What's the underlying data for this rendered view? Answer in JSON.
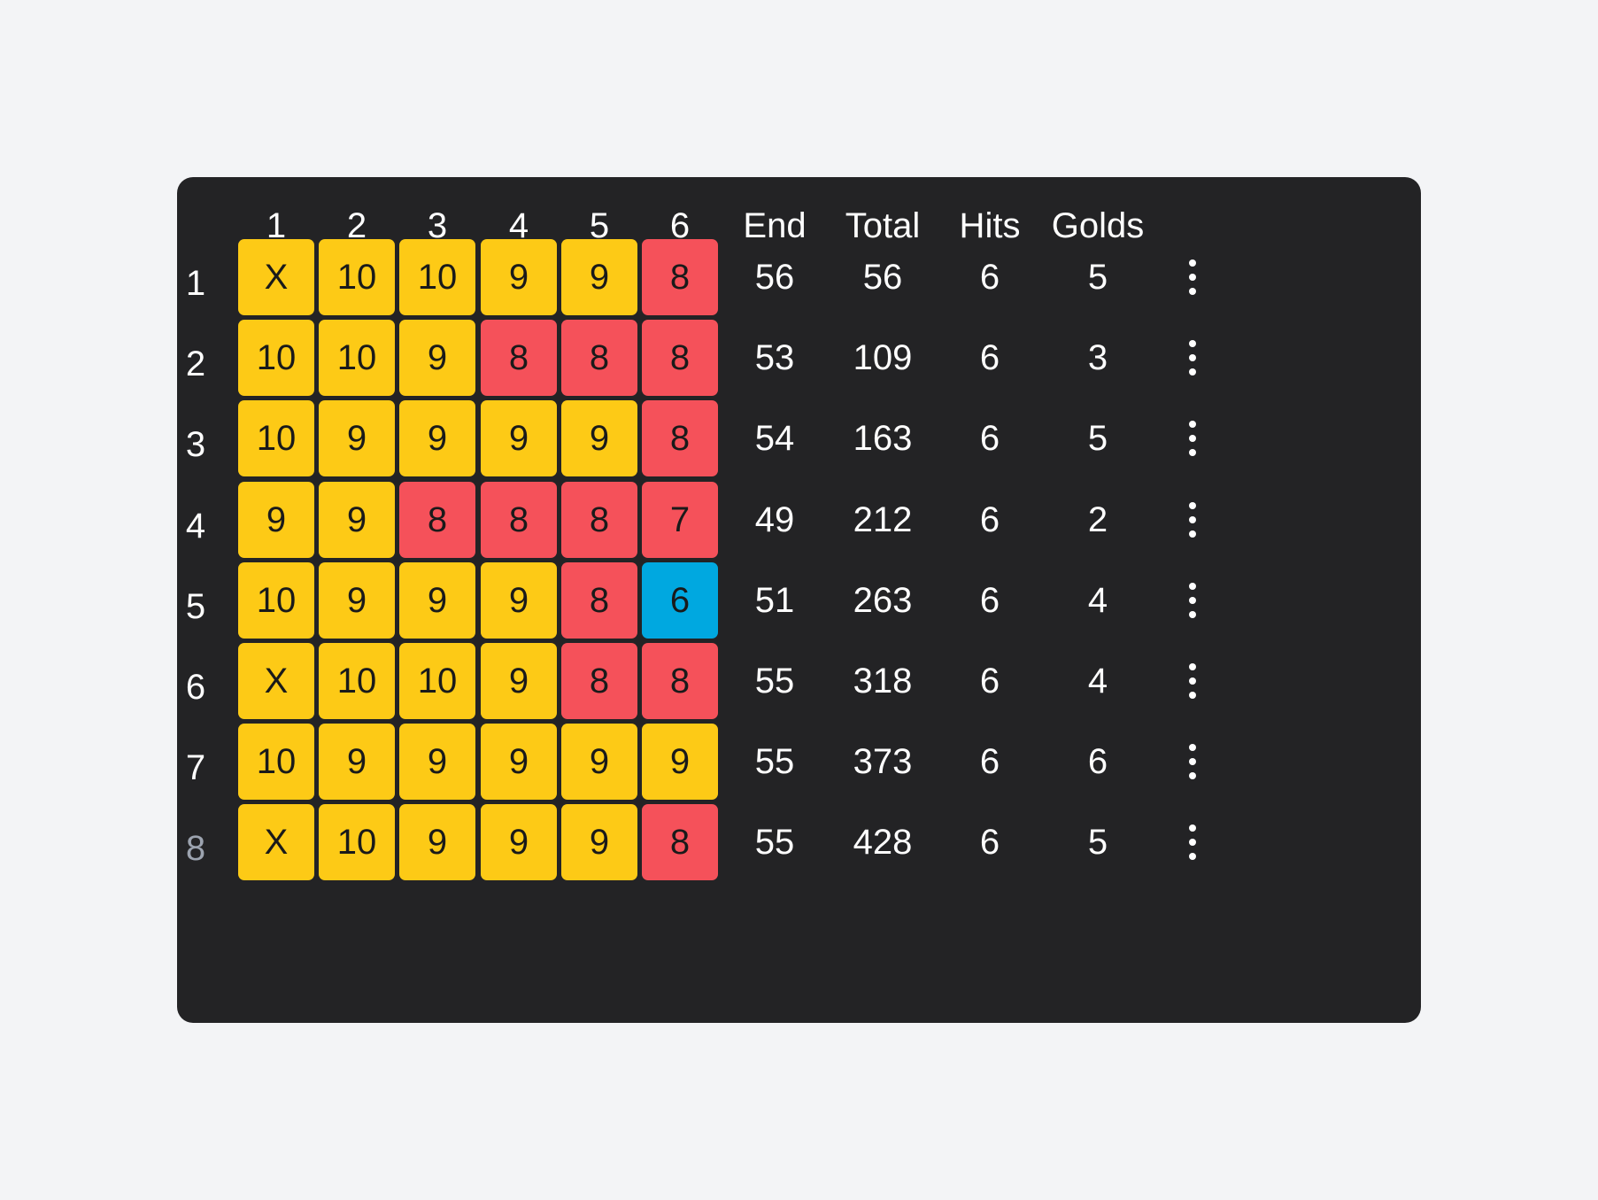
{
  "columns": [
    "1",
    "2",
    "3",
    "4",
    "5",
    "6"
  ],
  "stat_headers": [
    "End",
    "Total",
    "Hits",
    "Golds"
  ],
  "score_colors": {
    "gold": "#fdca16",
    "red": "#f5515a",
    "blue": "#00a8e0"
  },
  "row_action_icon": "more-vertical-icon",
  "rows": [
    {
      "num": "1",
      "arrows": [
        "X",
        "10",
        "10",
        "9",
        "9",
        "8"
      ],
      "end": "56",
      "total": "56",
      "hits": "6",
      "golds": "5"
    },
    {
      "num": "2",
      "arrows": [
        "10",
        "10",
        "9",
        "8",
        "8",
        "8"
      ],
      "end": "53",
      "total": "109",
      "hits": "6",
      "golds": "3"
    },
    {
      "num": "3",
      "arrows": [
        "10",
        "9",
        "9",
        "9",
        "9",
        "8"
      ],
      "end": "54",
      "total": "163",
      "hits": "6",
      "golds": "5"
    },
    {
      "num": "4",
      "arrows": [
        "9",
        "9",
        "8",
        "8",
        "8",
        "7"
      ],
      "end": "49",
      "total": "212",
      "hits": "6",
      "golds": "2"
    },
    {
      "num": "5",
      "arrows": [
        "10",
        "9",
        "9",
        "9",
        "8",
        "6"
      ],
      "end": "51",
      "total": "263",
      "hits": "6",
      "golds": "4"
    },
    {
      "num": "6",
      "arrows": [
        "X",
        "10",
        "10",
        "9",
        "8",
        "8"
      ],
      "end": "55",
      "total": "318",
      "hits": "6",
      "golds": "4"
    },
    {
      "num": "7",
      "arrows": [
        "10",
        "9",
        "9",
        "9",
        "9",
        "9"
      ],
      "end": "55",
      "total": "373",
      "hits": "6",
      "golds": "6"
    },
    {
      "num": "8",
      "arrows": [
        "X",
        "10",
        "9",
        "9",
        "9",
        "8"
      ],
      "end": "55",
      "total": "428",
      "hits": "6",
      "golds": "5"
    }
  ]
}
